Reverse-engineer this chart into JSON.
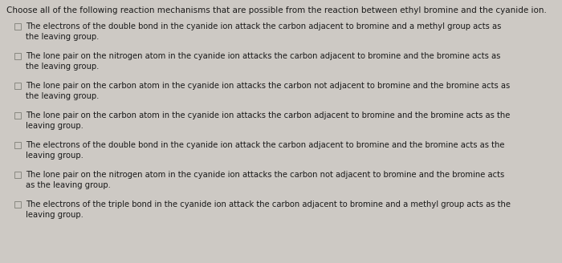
{
  "title": "Choose all of the following reaction mechanisms that are possible from the reaction between ethyl bromine and the cyanide ion.",
  "background_color": "#cdc9c4",
  "title_fontsize": 7.5,
  "item_fontsize": 7.2,
  "items": [
    "The electrons of the double bond in the cyanide ion attack the carbon adjacent to bromine and a methyl group acts as\nthe leaving group.",
    "The lone pair on the nitrogen atom in the cyanide ion attacks the carbon adjacent to bromine and the bromine acts as\nthe leaving group.",
    "The lone pair on the carbon atom in the cyanide ion attacks the carbon not adjacent to bromine and the bromine acts as\nthe leaving group.",
    "The lone pair on the carbon atom in the cyanide ion attacks the carbon adjacent to bromine and the bromine acts as the\nleaving group.",
    "The electrons of the double bond in the cyanide ion attack the carbon adjacent to bromine and the bromine acts as the\nleaving group.",
    "The lone pair on the nitrogen atom in the cyanide ion attacks the carbon not adjacent to bromine and the bromine acts\nas the leaving group.",
    "The electrons of the triple bond in the cyanide ion attack the carbon adjacent to bromine and a methyl group acts as the\nleaving group."
  ],
  "checkbox_color": "#888880",
  "text_color": "#1a1a1a",
  "title_color": "#1a1a1a"
}
